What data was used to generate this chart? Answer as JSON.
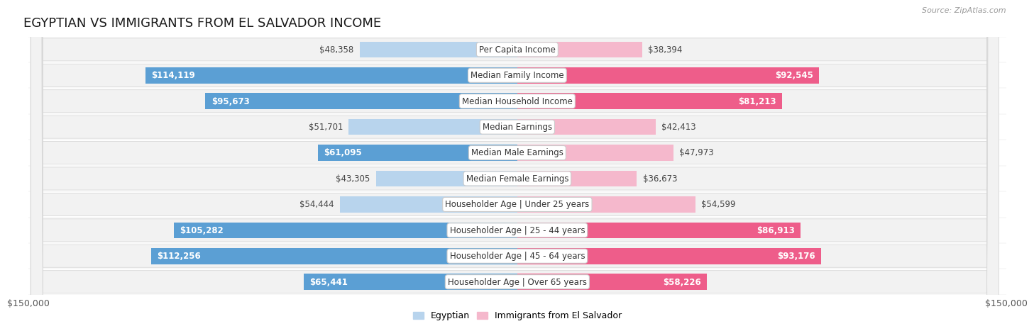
{
  "title": "EGYPTIAN VS IMMIGRANTS FROM EL SALVADOR INCOME",
  "source": "Source: ZipAtlas.com",
  "categories": [
    "Per Capita Income",
    "Median Family Income",
    "Median Household Income",
    "Median Earnings",
    "Median Male Earnings",
    "Median Female Earnings",
    "Householder Age | Under 25 years",
    "Householder Age | 25 - 44 years",
    "Householder Age | 45 - 64 years",
    "Householder Age | Over 65 years"
  ],
  "egyptian_values": [
    48358,
    114119,
    95673,
    51701,
    61095,
    43305,
    54444,
    105282,
    112256,
    65441
  ],
  "salvador_values": [
    38394,
    92545,
    81213,
    42413,
    47973,
    36673,
    54599,
    86913,
    93176,
    58226
  ],
  "egyptian_labels": [
    "$48,358",
    "$114,119",
    "$95,673",
    "$51,701",
    "$61,095",
    "$43,305",
    "$54,444",
    "$105,282",
    "$112,256",
    "$65,441"
  ],
  "salvador_labels": [
    "$38,394",
    "$92,545",
    "$81,213",
    "$42,413",
    "$47,973",
    "$36,673",
    "$54,599",
    "$86,913",
    "$93,176",
    "$58,226"
  ],
  "max_value": 150000,
  "bar_color_egyptian_light": "#b8d4ed",
  "bar_color_egyptian_dark": "#5b9fd4",
  "bar_color_salvador_light": "#f5b8cc",
  "bar_color_salvador_dark": "#ee5d8a",
  "row_bg": "#f2f2f2",
  "legend_egyptian": "Egyptian",
  "legend_salvador": "Immigrants from El Salvador",
  "xlabel_left": "$150,000",
  "xlabel_right": "$150,000",
  "title_fontsize": 13,
  "label_fontsize": 8.5,
  "category_fontsize": 8.5,
  "egyptian_large_threshold": 60000,
  "salvador_large_threshold": 58000
}
